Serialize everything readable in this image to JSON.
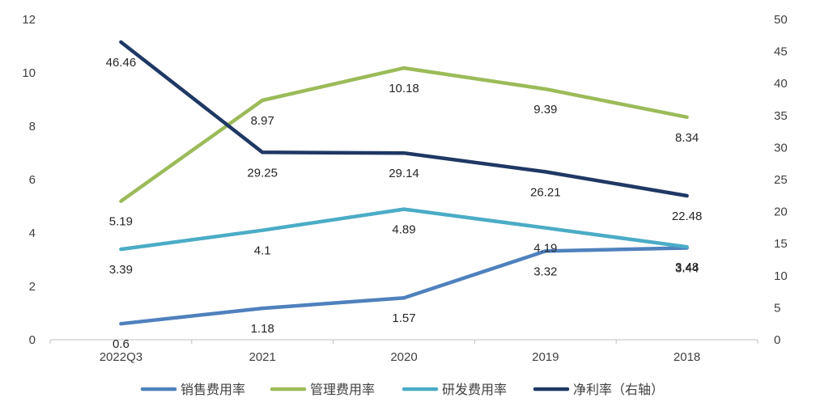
{
  "chart_data": {
    "type": "line",
    "title": "",
    "categories": [
      "2022Q3",
      "2021",
      "2020",
      "2019",
      "2018"
    ],
    "y_left": {
      "min": 0,
      "max": 12,
      "step": 2,
      "ticks": [
        "0",
        "2",
        "4",
        "6",
        "8",
        "10",
        "12"
      ]
    },
    "y_right": {
      "min": 0,
      "max": 50,
      "step": 5,
      "ticks": [
        "0",
        "5",
        "10",
        "15",
        "20",
        "25",
        "30",
        "35",
        "40",
        "45",
        "50"
      ]
    },
    "grid": false,
    "legend_position": "bottom",
    "series": [
      {
        "name": "销售费用率",
        "axis": "left",
        "color": "#4F81BD",
        "values": [
          0.6,
          1.18,
          1.57,
          3.32,
          3.44
        ],
        "labels": [
          "0.6",
          "1.18",
          "1.57",
          "3.32",
          "3.44"
        ]
      },
      {
        "name": "管理费用率",
        "axis": "left",
        "color": "#9BBB59",
        "values": [
          5.19,
          8.97,
          10.18,
          9.39,
          8.34
        ],
        "labels": [
          "5.19",
          "8.97",
          "10.18",
          "9.39",
          "8.34"
        ]
      },
      {
        "name": "研发费用率",
        "axis": "left",
        "color": "#4BACC6",
        "values": [
          3.39,
          4.1,
          4.89,
          4.19,
          3.48
        ],
        "labels": [
          "3.39",
          "4.1",
          "4.89",
          "4.19",
          "3.48"
        ]
      },
      {
        "name": "净利率（右轴）",
        "axis": "right",
        "color": "#1F3864",
        "values": [
          46.46,
          29.25,
          29.14,
          26.21,
          22.48
        ],
        "labels": [
          "46.46",
          "29.25",
          "29.14",
          "26.21",
          "22.48"
        ]
      }
    ]
  }
}
